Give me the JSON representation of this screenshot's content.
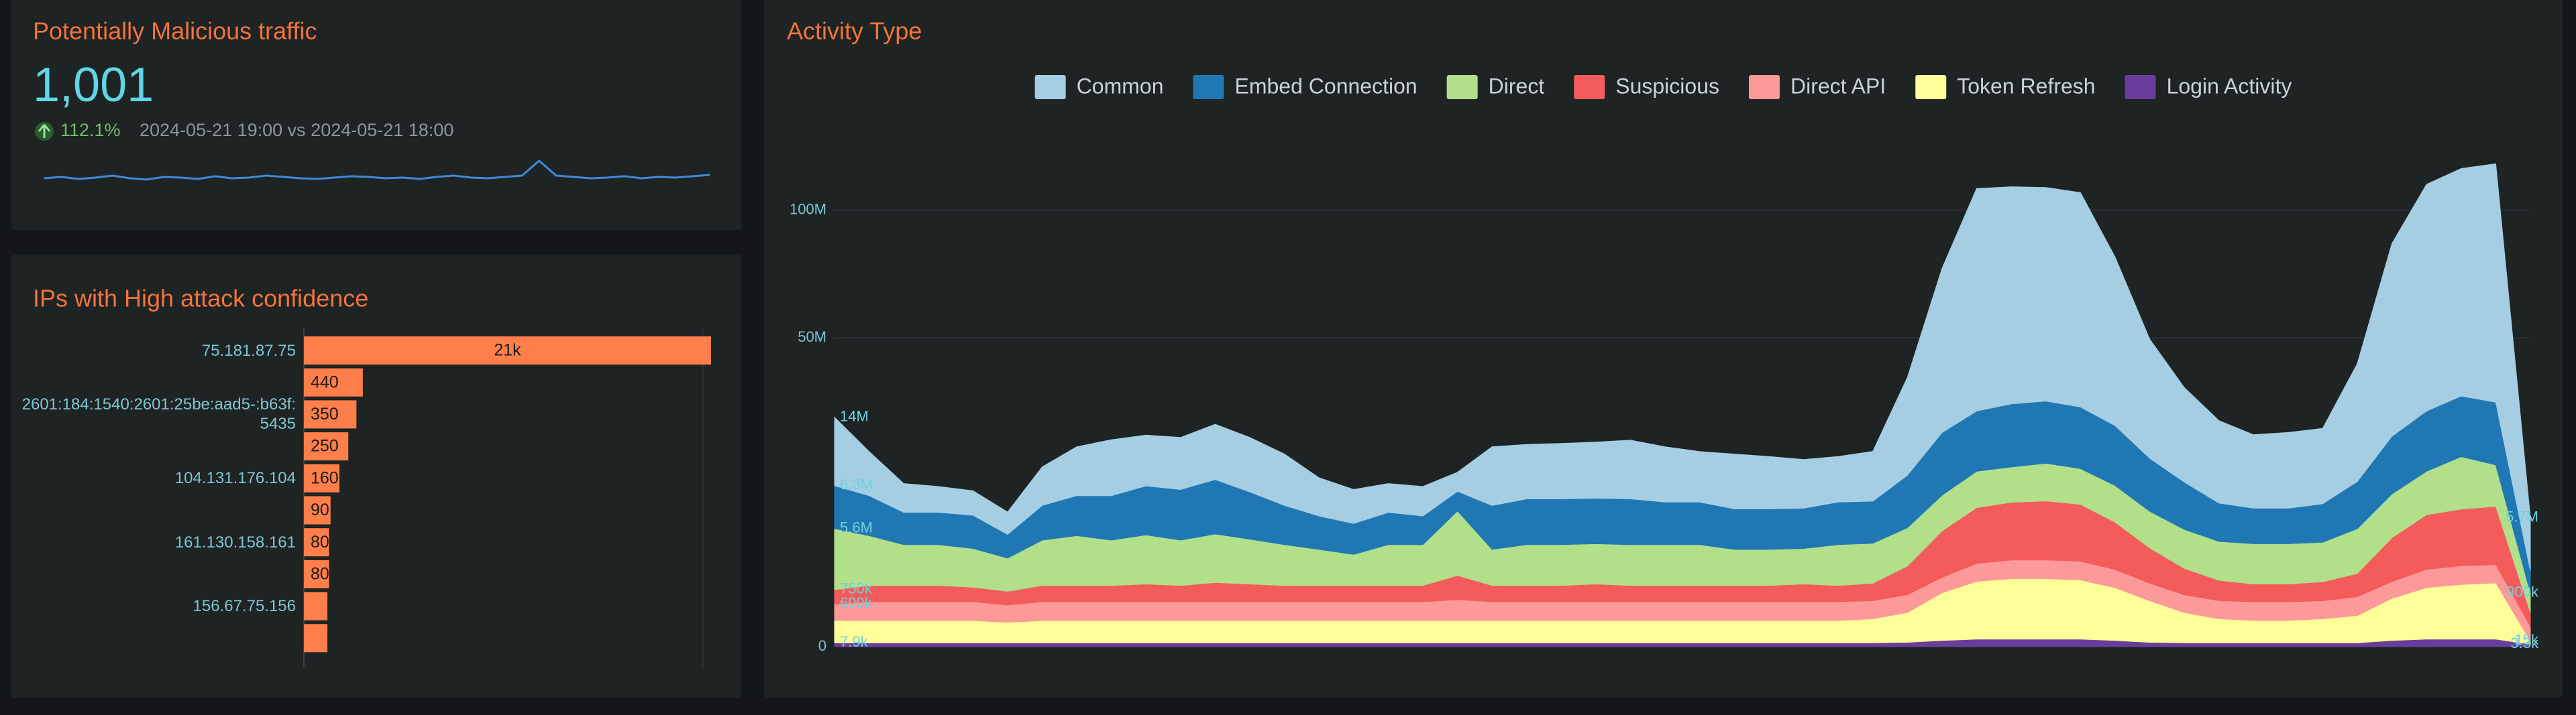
{
  "chart_data": [
    {
      "type": "stat",
      "title": "Potentially Malicious traffic",
      "value": 1001,
      "value_label": "1,001",
      "change": 112.1,
      "change_label": "112.1%",
      "comparison": "2024-05-21 19:00 vs 2024-05-21 18:00",
      "color": "#3d8bd9",
      "values": [
        520,
        540,
        510,
        530,
        560,
        520,
        500,
        540,
        530,
        510,
        550,
        520,
        530,
        560,
        540,
        520,
        510,
        530,
        550,
        540,
        520,
        530,
        510,
        540,
        560,
        530,
        520,
        540,
        560,
        780,
        560,
        540,
        520,
        530,
        550,
        520,
        540,
        530,
        550,
        570
      ]
    },
    {
      "type": "bar",
      "orientation": "horizontal",
      "title": "IPs with High attack confidence",
      "categories": [
        "75.181.87.75",
        null,
        "2601:184:1540:2601:25be:aad5-:b63f:5435",
        null,
        "104.131.176.104",
        null,
        "161.130.158.161",
        null,
        "156.67.75.156",
        null
      ],
      "values": [
        21000,
        440,
        350,
        250,
        160,
        90,
        80,
        80,
        70,
        70
      ],
      "value_labels": [
        "21k",
        "440",
        "350",
        "250",
        "160",
        "90",
        "80",
        "80",
        null,
        null
      ],
      "color": "#ff7f4a",
      "xlim": [
        0,
        21000
      ],
      "xscale": "sqrt"
    },
    {
      "type": "area",
      "stacked": true,
      "title": "Activity Type",
      "ylim": [
        0,
        135
      ],
      "yscale": "sqrt",
      "yticks": [
        0,
        {
          "value": 50,
          "label": "50M"
        },
        {
          "value": 100,
          "label": "100M"
        }
      ],
      "grid": true,
      "legend": "top",
      "series": [
        {
          "name": "Common",
          "color": "#a6cee3",
          "values": [
            14,
            8.0,
            4.5,
            4.0,
            3.7,
            2.9,
            6.5,
            9.0,
            10.5,
            9.9,
            10.0,
            11.3,
            10.4,
            9.0,
            6.0,
            5.0,
            4.5,
            4.5,
            3.3,
            10.5,
            10.0,
            10.2,
            10.4,
            10.9,
            10.0,
            9.0,
            9.5,
            9.0,
            8.3,
            8.0,
            8.9,
            22.6,
            51,
            81,
            80,
            79,
            78,
            54,
            31,
            21,
            16,
            13.5,
            14,
            14.3,
            27.7,
            62,
            83,
            87,
            91,
            5.7
          ],
          "value_labels": [
            "14M",
            null,
            null,
            null,
            null,
            null,
            null,
            null,
            null,
            null,
            null,
            null,
            null,
            null,
            null,
            null,
            null,
            null,
            null,
            null,
            null,
            null,
            null,
            null,
            null,
            null,
            null,
            null,
            null,
            null,
            null,
            null,
            null,
            null,
            null,
            null,
            null,
            null,
            null,
            null,
            null,
            null,
            null,
            null,
            null,
            null,
            null,
            null,
            null,
            "5.7M"
          ]
        },
        {
          "name": "Embed Connection",
          "color": "#1f78b4",
          "values": [
            6.3,
            5.5,
            4.0,
            4.0,
            4.0,
            2.5,
            4.5,
            5.5,
            6.0,
            7.0,
            7.0,
            8.0,
            6.5,
            5.0,
            4.0,
            3.5,
            4.0,
            3.5,
            3.0,
            5.5,
            6.0,
            6.0,
            6.0,
            6.0,
            5.5,
            5.5,
            5.0,
            5.0,
            5.0,
            5.5,
            5.5,
            8.0,
            12.0,
            13.0,
            14.0,
            14.0,
            13.5,
            12.0,
            9.0,
            7.0,
            5.0,
            4.5,
            4.5,
            5.0,
            7.0,
            11.0,
            13.0,
            14.0,
            14.0,
            1.5
          ],
          "value_labels": [
            "6.3M",
            null,
            null,
            null,
            null,
            null,
            null,
            null,
            null,
            null,
            null,
            null,
            null,
            null,
            null,
            null,
            null,
            null,
            null,
            null,
            null,
            null,
            null,
            null,
            null,
            null,
            null,
            null,
            null,
            null,
            null,
            null,
            null,
            null,
            null,
            null,
            null,
            null,
            null,
            null,
            null,
            null,
            null,
            null,
            null,
            null,
            null,
            null,
            null,
            null
          ]
        },
        {
          "name": "Direct",
          "color": "#b2df8a",
          "values": [
            5.6,
            4.5,
            3.5,
            3.5,
            3.2,
            2.5,
            4.0,
            4.5,
            4.0,
            4.5,
            4.0,
            4.5,
            4.0,
            3.5,
            3.0,
            2.5,
            3.5,
            3.5,
            7.0,
            3.0,
            3.5,
            3.5,
            3.5,
            3.5,
            3.5,
            3.5,
            3.0,
            3.0,
            3.0,
            3.5,
            3.5,
            4.0,
            5.0,
            6.0,
            6.0,
            6.5,
            6.0,
            5.5,
            4.5,
            4.0,
            3.5,
            3.5,
            3.5,
            3.5,
            4.5,
            6.0,
            7.0,
            9.0,
            7.0,
            0.9
          ],
          "value_labels": [
            "5.6M",
            null,
            null,
            null,
            null,
            null,
            null,
            null,
            null,
            null,
            null,
            null,
            null,
            null,
            null,
            null,
            null,
            null,
            null,
            null,
            null,
            null,
            null,
            null,
            null,
            null,
            null,
            null,
            null,
            null,
            null,
            null,
            null,
            null,
            null,
            null,
            null,
            null,
            null,
            null,
            null,
            null,
            null,
            null,
            null,
            null,
            null,
            null,
            null,
            "900k"
          ]
        },
        {
          "name": "Suspicious",
          "color": "#f45b5b",
          "values": [
            0.75,
            0.9,
            0.9,
            0.9,
            0.8,
            0.7,
            0.9,
            0.9,
            0.9,
            1.0,
            0.9,
            1.1,
            1.0,
            0.9,
            0.9,
            0.9,
            0.9,
            0.9,
            1.5,
            0.9,
            0.9,
            0.9,
            1.0,
            0.9,
            0.9,
            0.9,
            0.9,
            0.9,
            1.0,
            0.9,
            1.0,
            2.0,
            4.5,
            6.5,
            7.0,
            7.2,
            6.8,
            5.0,
            3.0,
            1.8,
            1.2,
            1.0,
            1.0,
            1.1,
            1.5,
            4.0,
            6.0,
            6.5,
            6.8,
            0.4
          ],
          "value_labels": [
            "750k",
            null,
            null,
            null,
            null,
            null,
            null,
            null,
            null,
            null,
            null,
            null,
            null,
            null,
            null,
            null,
            null,
            null,
            null,
            null,
            null,
            null,
            null,
            null,
            null,
            null,
            null,
            null,
            null,
            null,
            null,
            null,
            null,
            null,
            null,
            null,
            null,
            null,
            null,
            null,
            null,
            null,
            null,
            null,
            null,
            null,
            null,
            null,
            null,
            null
          ]
        },
        {
          "name": "Direct API",
          "color": "#fb9a99",
          "values": [
            0.6,
            0.7,
            0.7,
            0.7,
            0.7,
            0.6,
            0.7,
            0.7,
            0.7,
            0.7,
            0.7,
            0.7,
            0.7,
            0.7,
            0.7,
            0.7,
            0.7,
            0.7,
            0.8,
            0.7,
            0.7,
            0.7,
            0.7,
            0.7,
            0.7,
            0.7,
            0.7,
            0.7,
            0.7,
            0.7,
            0.7,
            0.8,
            1.0,
            1.4,
            1.5,
            1.5,
            1.5,
            1.3,
            1.0,
            0.8,
            0.7,
            0.7,
            0.7,
            0.7,
            0.8,
            1.0,
            1.3,
            1.4,
            1.4,
            0.2
          ],
          "value_labels": [
            "600k",
            null,
            null,
            null,
            null,
            null,
            null,
            null,
            null,
            null,
            null,
            null,
            null,
            null,
            null,
            null,
            null,
            null,
            null,
            null,
            null,
            null,
            null,
            null,
            null,
            null,
            null,
            null,
            null,
            null,
            null,
            null,
            null,
            null,
            null,
            null,
            null,
            null,
            null,
            null,
            null,
            null,
            null,
            null,
            null,
            null,
            null,
            null,
            null,
            null
          ]
        },
        {
          "name": "Token Refresh",
          "color": "#ffff99",
          "values": [
            0.35,
            0.35,
            0.35,
            0.35,
            0.35,
            0.3,
            0.35,
            0.35,
            0.35,
            0.35,
            0.35,
            0.35,
            0.35,
            0.35,
            0.35,
            0.35,
            0.35,
            0.35,
            0.35,
            0.35,
            0.35,
            0.35,
            0.35,
            0.35,
            0.35,
            0.35,
            0.35,
            0.35,
            0.35,
            0.35,
            0.4,
            0.6,
            1.5,
            2.2,
            2.4,
            2.4,
            2.3,
            1.8,
            1.1,
            0.6,
            0.4,
            0.35,
            0.35,
            0.4,
            0.5,
            1.2,
            1.8,
            2.0,
            2.1,
            0.015
          ],
          "value_labels": [
            null,
            null,
            null,
            null,
            null,
            null,
            null,
            null,
            null,
            null,
            null,
            null,
            null,
            null,
            null,
            null,
            null,
            null,
            null,
            null,
            null,
            null,
            null,
            null,
            null,
            null,
            null,
            null,
            null,
            null,
            null,
            null,
            null,
            null,
            null,
            null,
            null,
            null,
            null,
            null,
            null,
            null,
            null,
            null,
            null,
            null,
            null,
            null,
            null,
            "15k"
          ]
        },
        {
          "name": "Login Activity",
          "color": "#6a3d9a",
          "values": [
            0.0079,
            0.008,
            0.008,
            0.008,
            0.008,
            0.008,
            0.008,
            0.008,
            0.008,
            0.008,
            0.008,
            0.008,
            0.008,
            0.008,
            0.008,
            0.008,
            0.008,
            0.008,
            0.008,
            0.008,
            0.008,
            0.008,
            0.008,
            0.008,
            0.008,
            0.008,
            0.008,
            0.008,
            0.008,
            0.008,
            0.008,
            0.01,
            0.02,
            0.03,
            0.03,
            0.03,
            0.03,
            0.02,
            0.01,
            0.008,
            0.008,
            0.008,
            0.008,
            0.008,
            0.008,
            0.02,
            0.03,
            0.03,
            0.03,
            0.0033
          ],
          "value_labels": [
            "7.9k",
            null,
            null,
            null,
            null,
            null,
            null,
            null,
            null,
            null,
            null,
            null,
            null,
            null,
            null,
            null,
            null,
            null,
            null,
            null,
            null,
            null,
            null,
            null,
            null,
            null,
            null,
            null,
            null,
            null,
            null,
            null,
            null,
            null,
            null,
            null,
            null,
            null,
            null,
            null,
            null,
            null,
            null,
            null,
            null,
            null,
            null,
            null,
            null,
            "3.3k"
          ]
        }
      ]
    }
  ]
}
